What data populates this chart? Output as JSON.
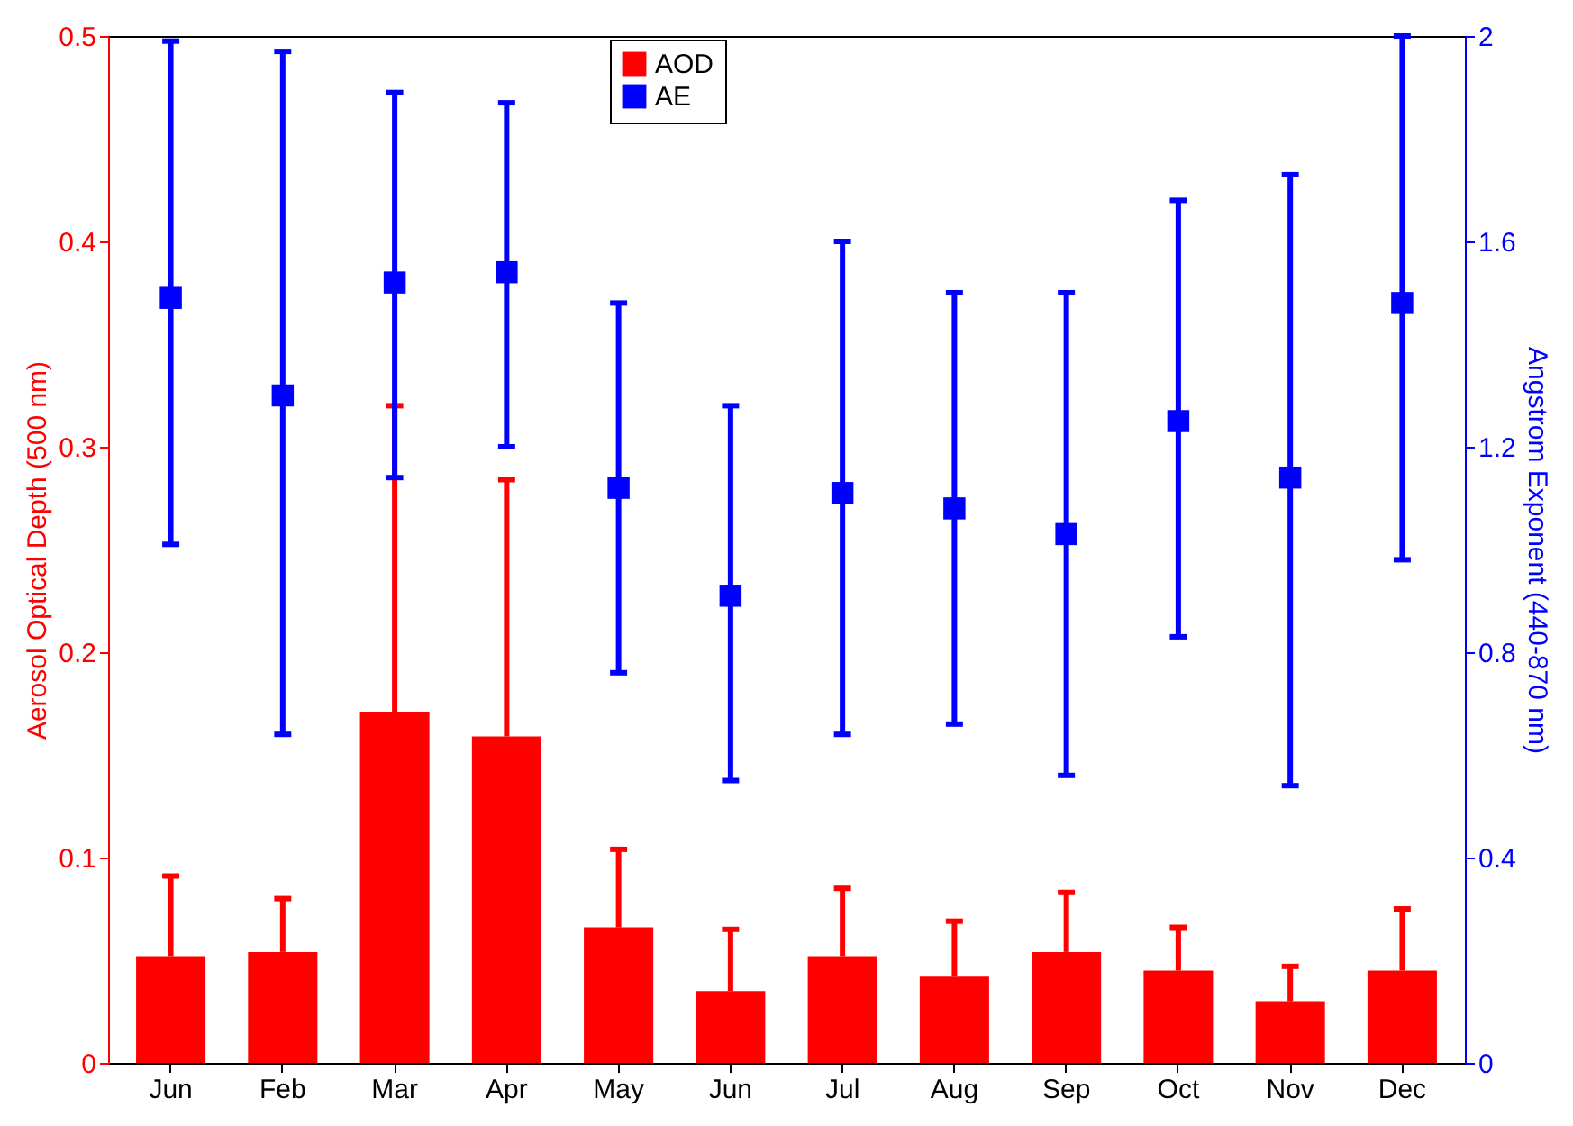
{
  "chart_data": {
    "type": "bar",
    "categories": [
      "Jun",
      "Feb",
      "Mar",
      "Apr",
      "May",
      "Jun",
      "Jul",
      "Aug",
      "Sep",
      "Oct",
      "Nov",
      "Dec"
    ],
    "ylabel": "Aerosol Optical Depth (500 nm)",
    "y2label": "Angstrom Exponent (440-870 nm)",
    "ylim": [
      0,
      0.5
    ],
    "yticks": [
      0,
      0.1,
      0.2,
      0.3,
      0.4,
      0.5
    ],
    "y2lim": [
      0,
      2
    ],
    "y2ticks": [
      0,
      0.4,
      0.8,
      1.2,
      1.6,
      2
    ],
    "grid": false,
    "legend": "top",
    "marker": "square",
    "series": [
      {
        "name": "AOD",
        "color": "#ff0000",
        "values": [
          0.052,
          0.054,
          0.171,
          0.159,
          0.066,
          0.035,
          0.052,
          0.042,
          0.054,
          0.045,
          0.03,
          0.045
        ],
        "errors": [
          [
            0.052,
            0.091
          ],
          [
            0.054,
            0.08
          ],
          [
            0.171,
            0.32
          ],
          [
            0.159,
            0.284
          ],
          [
            0.066,
            0.104
          ],
          [
            0.035,
            0.065
          ],
          [
            0.052,
            0.085
          ],
          [
            0.042,
            0.069
          ],
          [
            0.054,
            0.083
          ],
          [
            0.045,
            0.066
          ],
          [
            0.03,
            0.047
          ],
          [
            0.045,
            0.075
          ]
        ]
      },
      {
        "name": "AE",
        "type": "scatter",
        "axis": "y2",
        "color": "#0000ff",
        "values": [
          1.49,
          1.3,
          1.52,
          1.54,
          1.12,
          0.91,
          1.11,
          1.08,
          1.03,
          1.25,
          1.14,
          1.48
        ],
        "errors": [
          [
            1.01,
            1.99
          ],
          [
            0.64,
            1.97
          ],
          [
            1.14,
            1.89
          ],
          [
            1.2,
            1.87
          ],
          [
            0.76,
            1.48
          ],
          [
            0.55,
            1.28
          ],
          [
            0.64,
            1.6
          ],
          [
            0.66,
            1.5
          ],
          [
            0.56,
            1.5
          ],
          [
            0.83,
            1.68
          ],
          [
            0.54,
            1.73
          ],
          [
            0.98,
            2.0
          ]
        ]
      }
    ]
  }
}
